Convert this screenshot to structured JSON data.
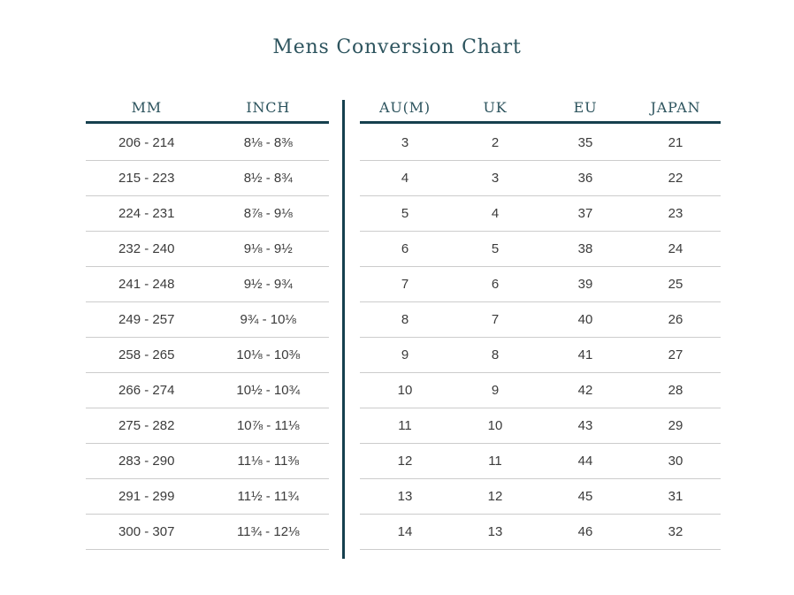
{
  "page": {
    "title": "Mens Conversion Chart"
  },
  "colors": {
    "accent_teal_text": "#2d545e",
    "rule_dark_teal": "#16404e",
    "row_separator_gray": "#cccccc",
    "cell_text": "#3b3b3b",
    "background": "#ffffff"
  },
  "chart_data": {
    "type": "table",
    "title": "Mens Conversion Chart",
    "columns": [
      "MM",
      "INCH",
      "AU(M)",
      "UK",
      "EU",
      "JAPAN"
    ],
    "rows": [
      [
        "206 - 214",
        "8⅛ - 8⅜",
        "3",
        "2",
        "35",
        "21"
      ],
      [
        "215 - 223",
        "8½ - 8¾",
        "4",
        "3",
        "36",
        "22"
      ],
      [
        "224 - 231",
        "8⅞ - 9⅛",
        "5",
        "4",
        "37",
        "23"
      ],
      [
        "232 - 240",
        "9⅛ - 9½",
        "6",
        "5",
        "38",
        "24"
      ],
      [
        "241 - 248",
        "9½ - 9¾",
        "7",
        "6",
        "39",
        "25"
      ],
      [
        "249 - 257",
        "9¾ - 10⅛",
        "8",
        "7",
        "40",
        "26"
      ],
      [
        "258 - 265",
        "10⅛ - 10⅜",
        "9",
        "8",
        "41",
        "27"
      ],
      [
        "266 - 274",
        "10½ - 10¾",
        "10",
        "9",
        "42",
        "28"
      ],
      [
        "275 - 282",
        "10⅞ - 11⅛",
        "11",
        "10",
        "43",
        "29"
      ],
      [
        "283 - 290",
        "11⅛ - 11⅜",
        "12",
        "11",
        "44",
        "30"
      ],
      [
        "291 - 299",
        "11½ - 11¾",
        "13",
        "12",
        "45",
        "31"
      ],
      [
        "300 - 307",
        "11¾ - 12⅛",
        "14",
        "13",
        "46",
        "32"
      ]
    ]
  }
}
